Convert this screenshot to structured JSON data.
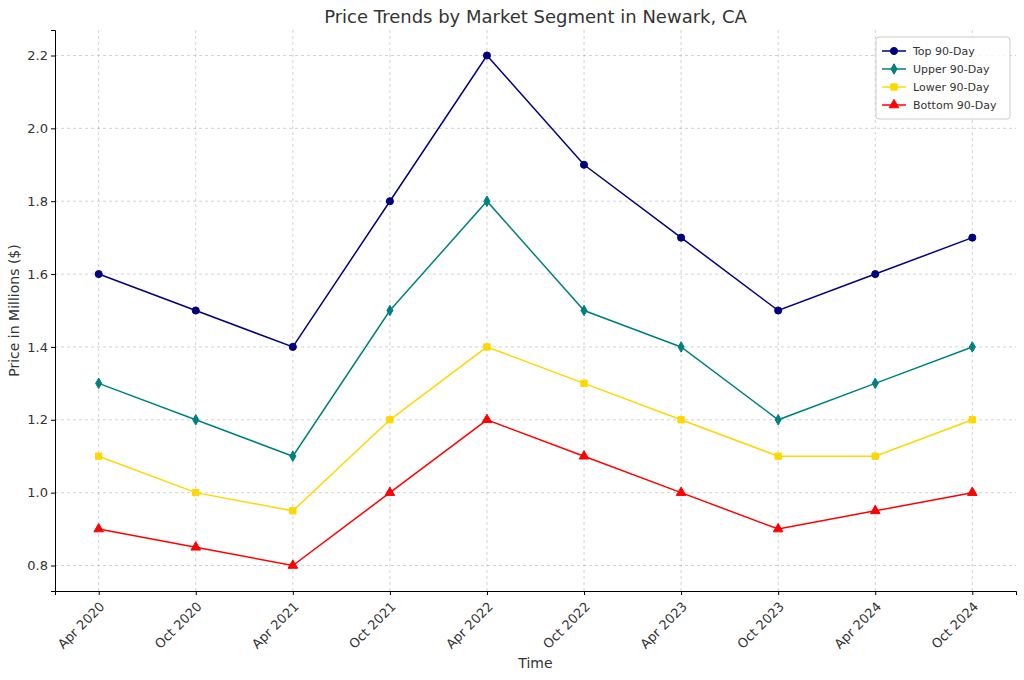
{
  "chart_data": {
    "type": "line",
    "title": "Price Trends by Market Segment in Newark, CA",
    "x_label": "Time",
    "y_label": "Price in Millions ($)",
    "categories": [
      "Apr 2020",
      "Oct 2020",
      "Apr 2021",
      "Oct 2021",
      "Apr 2022",
      "Oct 2022",
      "Apr 2023",
      "Oct 2023",
      "Apr 2024",
      "Oct 2024"
    ],
    "series": [
      {
        "name": "Top 90-Day",
        "color": "#000080",
        "marker": "circle",
        "values": [
          1.6,
          1.5,
          1.4,
          1.8,
          2.2,
          1.9,
          1.7,
          1.5,
          1.6,
          1.7
        ]
      },
      {
        "name": "Upper 90-Day",
        "color": "#008080",
        "marker": "diamond",
        "values": [
          1.3,
          1.2,
          1.1,
          1.5,
          1.8,
          1.5,
          1.4,
          1.2,
          1.3,
          1.4
        ]
      },
      {
        "name": "Lower 90-Day",
        "color": "#FFD700",
        "marker": "square",
        "values": [
          1.1,
          1.0,
          0.95,
          1.2,
          1.4,
          1.3,
          1.2,
          1.1,
          1.1,
          1.2
        ]
      },
      {
        "name": "Bottom 90-Day",
        "color": "#FF0000",
        "marker": "triangle",
        "values": [
          0.9,
          0.85,
          0.8,
          1.0,
          1.2,
          1.1,
          1.0,
          0.9,
          0.95,
          1.0
        ]
      }
    ],
    "ylim": [
      0.73,
      2.27
    ],
    "yticks": [
      0.8,
      {
        "value": 1,
        "label": "1.0"
      },
      1.2,
      1.4,
      1.6,
      1.8,
      {
        "value": 2,
        "label": "2.0"
      },
      2.2
    ],
    "grid": true,
    "legend": "upper right"
  }
}
